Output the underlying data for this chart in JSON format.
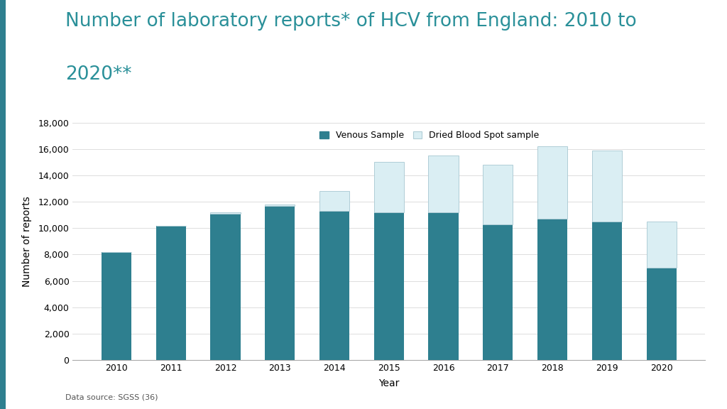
{
  "title_line1": "Number of laboratory reports* of HCV from England: 2010 to",
  "title_line2": "2020**",
  "title_color": "#2a9099",
  "years": [
    2010,
    2011,
    2012,
    2013,
    2014,
    2015,
    2016,
    2017,
    2018,
    2019,
    2020
  ],
  "venous": [
    8200,
    10200,
    11100,
    11700,
    11300,
    11200,
    11200,
    10300,
    10700,
    10500,
    7000
  ],
  "dbs": [
    0,
    0,
    100,
    100,
    1500,
    3800,
    4300,
    4500,
    5500,
    5400,
    3500
  ],
  "venous_color": "#2e7f8f",
  "dbs_color": "#daeef3",
  "dbs_edge_color": "#b0cdd6",
  "venous_edge_color": "#2e7f8f",
  "ylabel": "Number of reports",
  "xlabel": "Year",
  "ylim": [
    0,
    18000
  ],
  "yticks": [
    0,
    2000,
    4000,
    6000,
    8000,
    10000,
    12000,
    14000,
    16000,
    18000
  ],
  "legend_venous": "Venous Sample",
  "legend_dbs": "Dried Blood Spot sample",
  "footnote": "Data source: SGSS (36)",
  "title_fontsize": 19,
  "axis_fontsize": 10,
  "tick_fontsize": 9,
  "legend_fontsize": 9,
  "footnote_fontsize": 8,
  "bar_width": 0.55,
  "background_color": "#ffffff",
  "left_accent_color": "#2e7f8f",
  "grid_color": "#dddddd",
  "spine_color": "#aaaaaa"
}
